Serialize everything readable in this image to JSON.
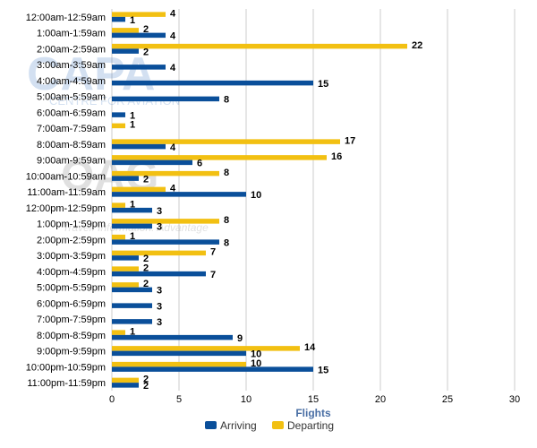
{
  "chart_data": {
    "type": "bar",
    "orientation": "horizontal",
    "title": "",
    "xlabel": "Flights",
    "ylabel": "",
    "xlim": [
      0,
      30
    ],
    "xticks": [
      0,
      5,
      10,
      15,
      20,
      25,
      30
    ],
    "grid": true,
    "legend_position": "bottom",
    "categories": [
      "12:00am-12:59am",
      "1:00am-1:59am",
      "2:00am-2:59am",
      "3:00am-3:59am",
      "4:00am-4:59am",
      "5:00am-5:59am",
      "6:00am-6:59am",
      "7:00am-7:59am",
      "8:00am-8:59am",
      "9:00am-9:59am",
      "10:00am-10:59am",
      "11:00am-11:59am",
      "12:00pm-12:59pm",
      "1:00pm-1:59pm",
      "2:00pm-2:59pm",
      "3:00pm-3:59pm",
      "4:00pm-4:59pm",
      "5:00pm-5:59pm",
      "6:00pm-6:59pm",
      "7:00pm-7:59pm",
      "8:00pm-8:59pm",
      "9:00pm-9:59pm",
      "10:00pm-10:59pm",
      "11:00pm-11:59pm"
    ],
    "series": [
      {
        "name": "Departing",
        "color": "#f2c012",
        "values": [
          4,
          2,
          22,
          0,
          0,
          0,
          0,
          1,
          17,
          16,
          8,
          4,
          1,
          8,
          1,
          7,
          2,
          2,
          0,
          0,
          1,
          14,
          10,
          2
        ]
      },
      {
        "name": "Arriving",
        "color": "#0a4f9a",
        "values": [
          1,
          4,
          2,
          4,
          15,
          8,
          1,
          0,
          4,
          6,
          2,
          10,
          3,
          3,
          8,
          2,
          7,
          3,
          3,
          3,
          9,
          10,
          15,
          2
        ]
      }
    ],
    "legend": [
      "Arriving",
      "Departing"
    ]
  },
  "watermark": {
    "capa_text": "CAPA",
    "capa_subtitle": "CENTRE FOR AVIATION",
    "oag_text": "OAG",
    "oag_subtitle": "Travel. Information. Advantage"
  }
}
